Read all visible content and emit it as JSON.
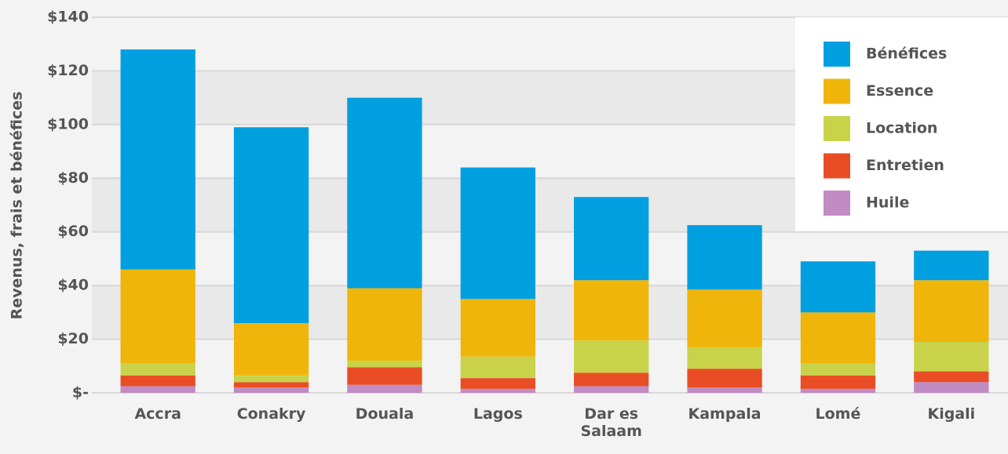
{
  "chart_data": {
    "type": "bar",
    "stacked": true,
    "y_label": "Revenus, frais et bénéfices",
    "categories": [
      "Accra",
      "Conakry",
      "Douala",
      "Lagos",
      "Dar es Salaam",
      "Kampala",
      "Lomé",
      "Kigali"
    ],
    "series": [
      {
        "name": "Huile",
        "color": "#c18bc4",
        "values": [
          2.5,
          2,
          3,
          1.5,
          2.5,
          2,
          1.5,
          4
        ]
      },
      {
        "name": "Entretien",
        "color": "#e94d25",
        "values": [
          4,
          2,
          6.5,
          4,
          5,
          7,
          5,
          4
        ]
      },
      {
        "name": "Location",
        "color": "#c9d34a",
        "values": [
          4.5,
          2.5,
          2.5,
          8,
          12,
          8,
          4.5,
          11
        ]
      },
      {
        "name": "Essence",
        "color": "#f0b50a",
        "values": [
          35,
          19.5,
          27,
          21.5,
          22.5,
          21.5,
          19,
          23
        ]
      },
      {
        "name": "Bénéfices",
        "color": "#009fe0",
        "values": [
          82,
          73,
          71,
          49,
          31,
          24,
          19,
          11
        ]
      }
    ],
    "ylim": [
      0,
      140
    ],
    "yticks": [
      {
        "value": 0,
        "label": "$-"
      },
      {
        "value": 20,
        "label": "$20"
      },
      {
        "value": 40,
        "label": "$40"
      },
      {
        "value": 60,
        "label": "$60"
      },
      {
        "value": 80,
        "label": "$80"
      },
      {
        "value": 100,
        "label": "$100"
      },
      {
        "value": 120,
        "label": "$120"
      },
      {
        "value": 140,
        "label": "$140"
      }
    ],
    "grid": true,
    "legend": "upper right"
  }
}
